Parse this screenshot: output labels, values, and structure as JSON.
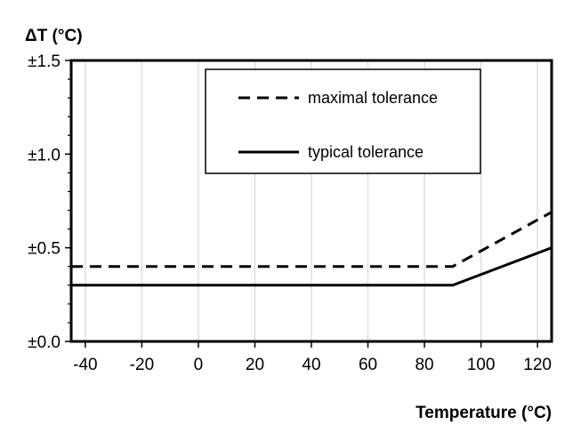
{
  "chart_data": {
    "type": "line",
    "ylabel": "ΔT (°C)",
    "xlabel": "Temperature (°C)",
    "xlim": [
      -45,
      125
    ],
    "ylim": [
      0,
      1.5
    ],
    "x_ticks": [
      -40,
      -20,
      0,
      20,
      40,
      60,
      80,
      100,
      120
    ],
    "y_ticks": [
      0,
      0.5,
      1.0,
      1.5
    ],
    "y_tick_labels": [
      "±0.0",
      "±0.5",
      "±1.0",
      "±1.5"
    ],
    "grid": "vertical",
    "legend_position": "top-center",
    "series": [
      {
        "name": "maximal tolerance",
        "style": "dashed",
        "x": [
          -45,
          90,
          125
        ],
        "y": [
          0.4,
          0.4,
          0.69
        ]
      },
      {
        "name": "typical tolerance",
        "style": "solid",
        "x": [
          -45,
          90,
          125
        ],
        "y": [
          0.3,
          0.3,
          0.5
        ]
      }
    ]
  }
}
